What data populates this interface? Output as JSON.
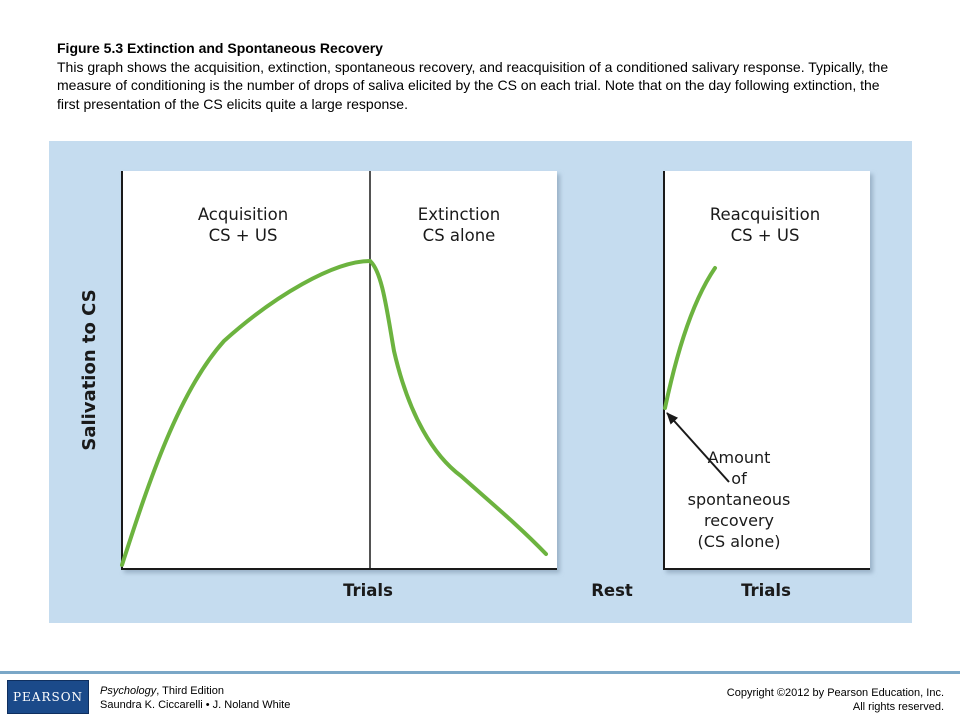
{
  "caption": {
    "title": "Figure 5.3 Extinction and Spontaneous Recovery",
    "body": "This graph shows the acquisition, extinction, spontaneous recovery, and reacquisition of a conditioned salivary response. Typically, the measure of conditioning is the number of drops of saliva elicited by the CS on each trial.  Note that on the day following extinction, the first presentation of the CS elicits quite a large response."
  },
  "diagram": {
    "y_axis_label": "Salivation to CS",
    "panels": [
      {
        "line1": "Acquisition",
        "line2": "CS + US"
      },
      {
        "line1": "Extinction",
        "line2": "CS alone"
      },
      {
        "line1": "Reacquisition",
        "line2": "CS + US"
      }
    ],
    "x_labels": {
      "left": "Trials",
      "middle": "Rest",
      "right": "Trials"
    },
    "annotation": [
      "Amount",
      "of",
      "spontaneous",
      "recovery",
      "(CS alone)"
    ],
    "colors": {
      "background": "#c5dcef",
      "panel": "#ffffff",
      "curve": "#6cb33f",
      "axis": "#1a1a1a",
      "text": "#1a1a1a"
    }
  },
  "footer": {
    "logo": "PEARSON",
    "book_title": "Psychology",
    "edition": ", Third Edition",
    "authors": "Saundra K. Ciccarelli • J. Noland White",
    "copyright_line1": "Copyright ©2012 by Pearson Education, Inc.",
    "copyright_line2": "All rights reserved."
  }
}
